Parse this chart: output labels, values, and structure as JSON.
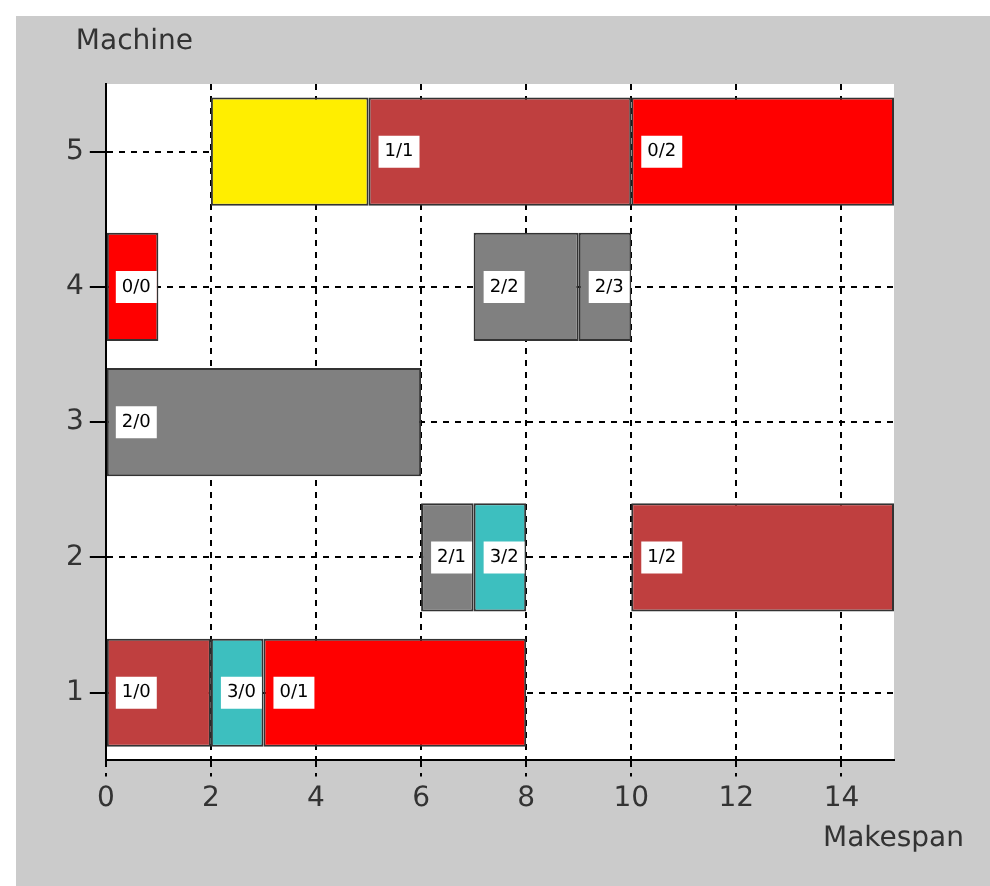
{
  "chart_data": {
    "type": "bar",
    "orientation": "horizontal",
    "xlabel": "Makespan",
    "ylabel": "Machine",
    "categories": [
      "5",
      "4",
      "3",
      "2",
      "1"
    ],
    "series": [
      {
        "color": "#ff0000",
        "values": [
          5,
          1,
          null,
          null,
          5
        ],
        "base": [
          10,
          0,
          null,
          null,
          3
        ]
      },
      {
        "color": "#bf3f3f",
        "values": [
          5,
          null,
          null,
          5,
          2
        ],
        "base": [
          5,
          null,
          null,
          10,
          0
        ]
      },
      {
        "color": "#808080",
        "values": [
          null,
          2,
          6,
          1,
          null
        ],
        "base": [
          null,
          7,
          0,
          6,
          null
        ]
      },
      {
        "color": "#808080",
        "values": [
          null,
          1,
          null,
          null,
          null
        ],
        "base": [
          null,
          9,
          null,
          null,
          null
        ]
      },
      {
        "color": "#3dbfbf",
        "values": [
          null,
          null,
          null,
          1,
          1
        ],
        "base": [
          null,
          null,
          null,
          7,
          2
        ]
      },
      {
        "color": "#ffee00",
        "values": [
          3,
          null,
          null,
          null,
          null
        ],
        "base": [
          2,
          null,
          null,
          null,
          null
        ]
      }
    ],
    "annotations": [
      {
        "text": "1/1",
        "x": 5,
        "y": "5"
      },
      {
        "text": "0/2",
        "x": 10,
        "y": "5"
      },
      {
        "text": "0/0",
        "x": 0,
        "y": "4"
      },
      {
        "text": "2/2",
        "x": 7,
        "y": "4"
      },
      {
        "text": "2/3",
        "x": 9,
        "y": "4"
      },
      {
        "text": "2/0",
        "x": 0,
        "y": "3"
      },
      {
        "text": "2/1",
        "x": 6,
        "y": "2"
      },
      {
        "text": "3/2",
        "x": 7,
        "y": "2"
      },
      {
        "text": "1/2",
        "x": 10,
        "y": "2"
      },
      {
        "text": "1/0",
        "x": 0,
        "y": "1"
      },
      {
        "text": "3/0",
        "x": 2,
        "y": "1"
      },
      {
        "text": "0/1",
        "x": 3,
        "y": "1"
      }
    ],
    "xlim": [
      0,
      15
    ],
    "xticks": [
      0,
      2,
      4,
      6,
      8,
      10,
      12,
      14
    ],
    "grid": true
  }
}
